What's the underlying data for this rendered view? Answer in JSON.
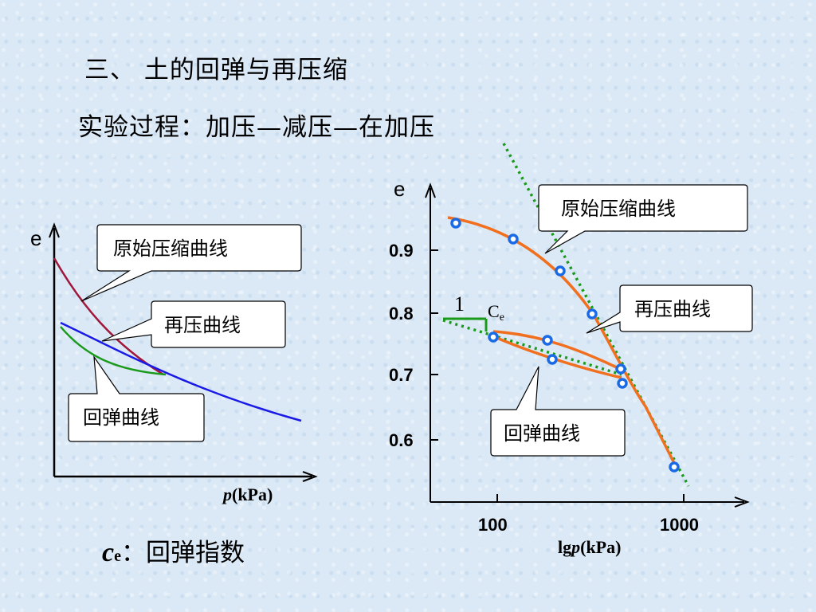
{
  "slide": {
    "title": "三、 土的回弹与再压缩",
    "subtitle": "实验过程：加压—减压—在加压",
    "ce_note_symbol": "c",
    "ce_note_sub": "e",
    "ce_note_text": "：回弹指数"
  },
  "left_chart": {
    "y_label": "e",
    "x_label_var": "p",
    "x_label_unit": "(kPa)",
    "callouts": {
      "original": "原始压缩曲线",
      "recompression": "再压曲线",
      "rebound": "回弹曲线"
    },
    "colors": {
      "original": "#a0183c",
      "recompression": "#1a1ae6",
      "rebound": "#1a9a1a"
    }
  },
  "right_chart": {
    "y_label": "e",
    "x_label_prefix": "lg",
    "x_label_var": "p",
    "x_label_unit": "(kPa)",
    "x_ticks": [
      "100",
      "1000"
    ],
    "y_ticks": [
      "0.9",
      "0.8",
      "0.7",
      "0.6"
    ],
    "slope_one": "1",
    "slope_ce_c": "C",
    "slope_ce_e": "e",
    "callouts": {
      "original": "原始压缩曲线",
      "recompression": "再压曲线",
      "rebound": "回弹曲线"
    },
    "colors": {
      "curve": "#f07020",
      "points": "#1a6ae6",
      "dotted": "#1a9a1a"
    }
  }
}
